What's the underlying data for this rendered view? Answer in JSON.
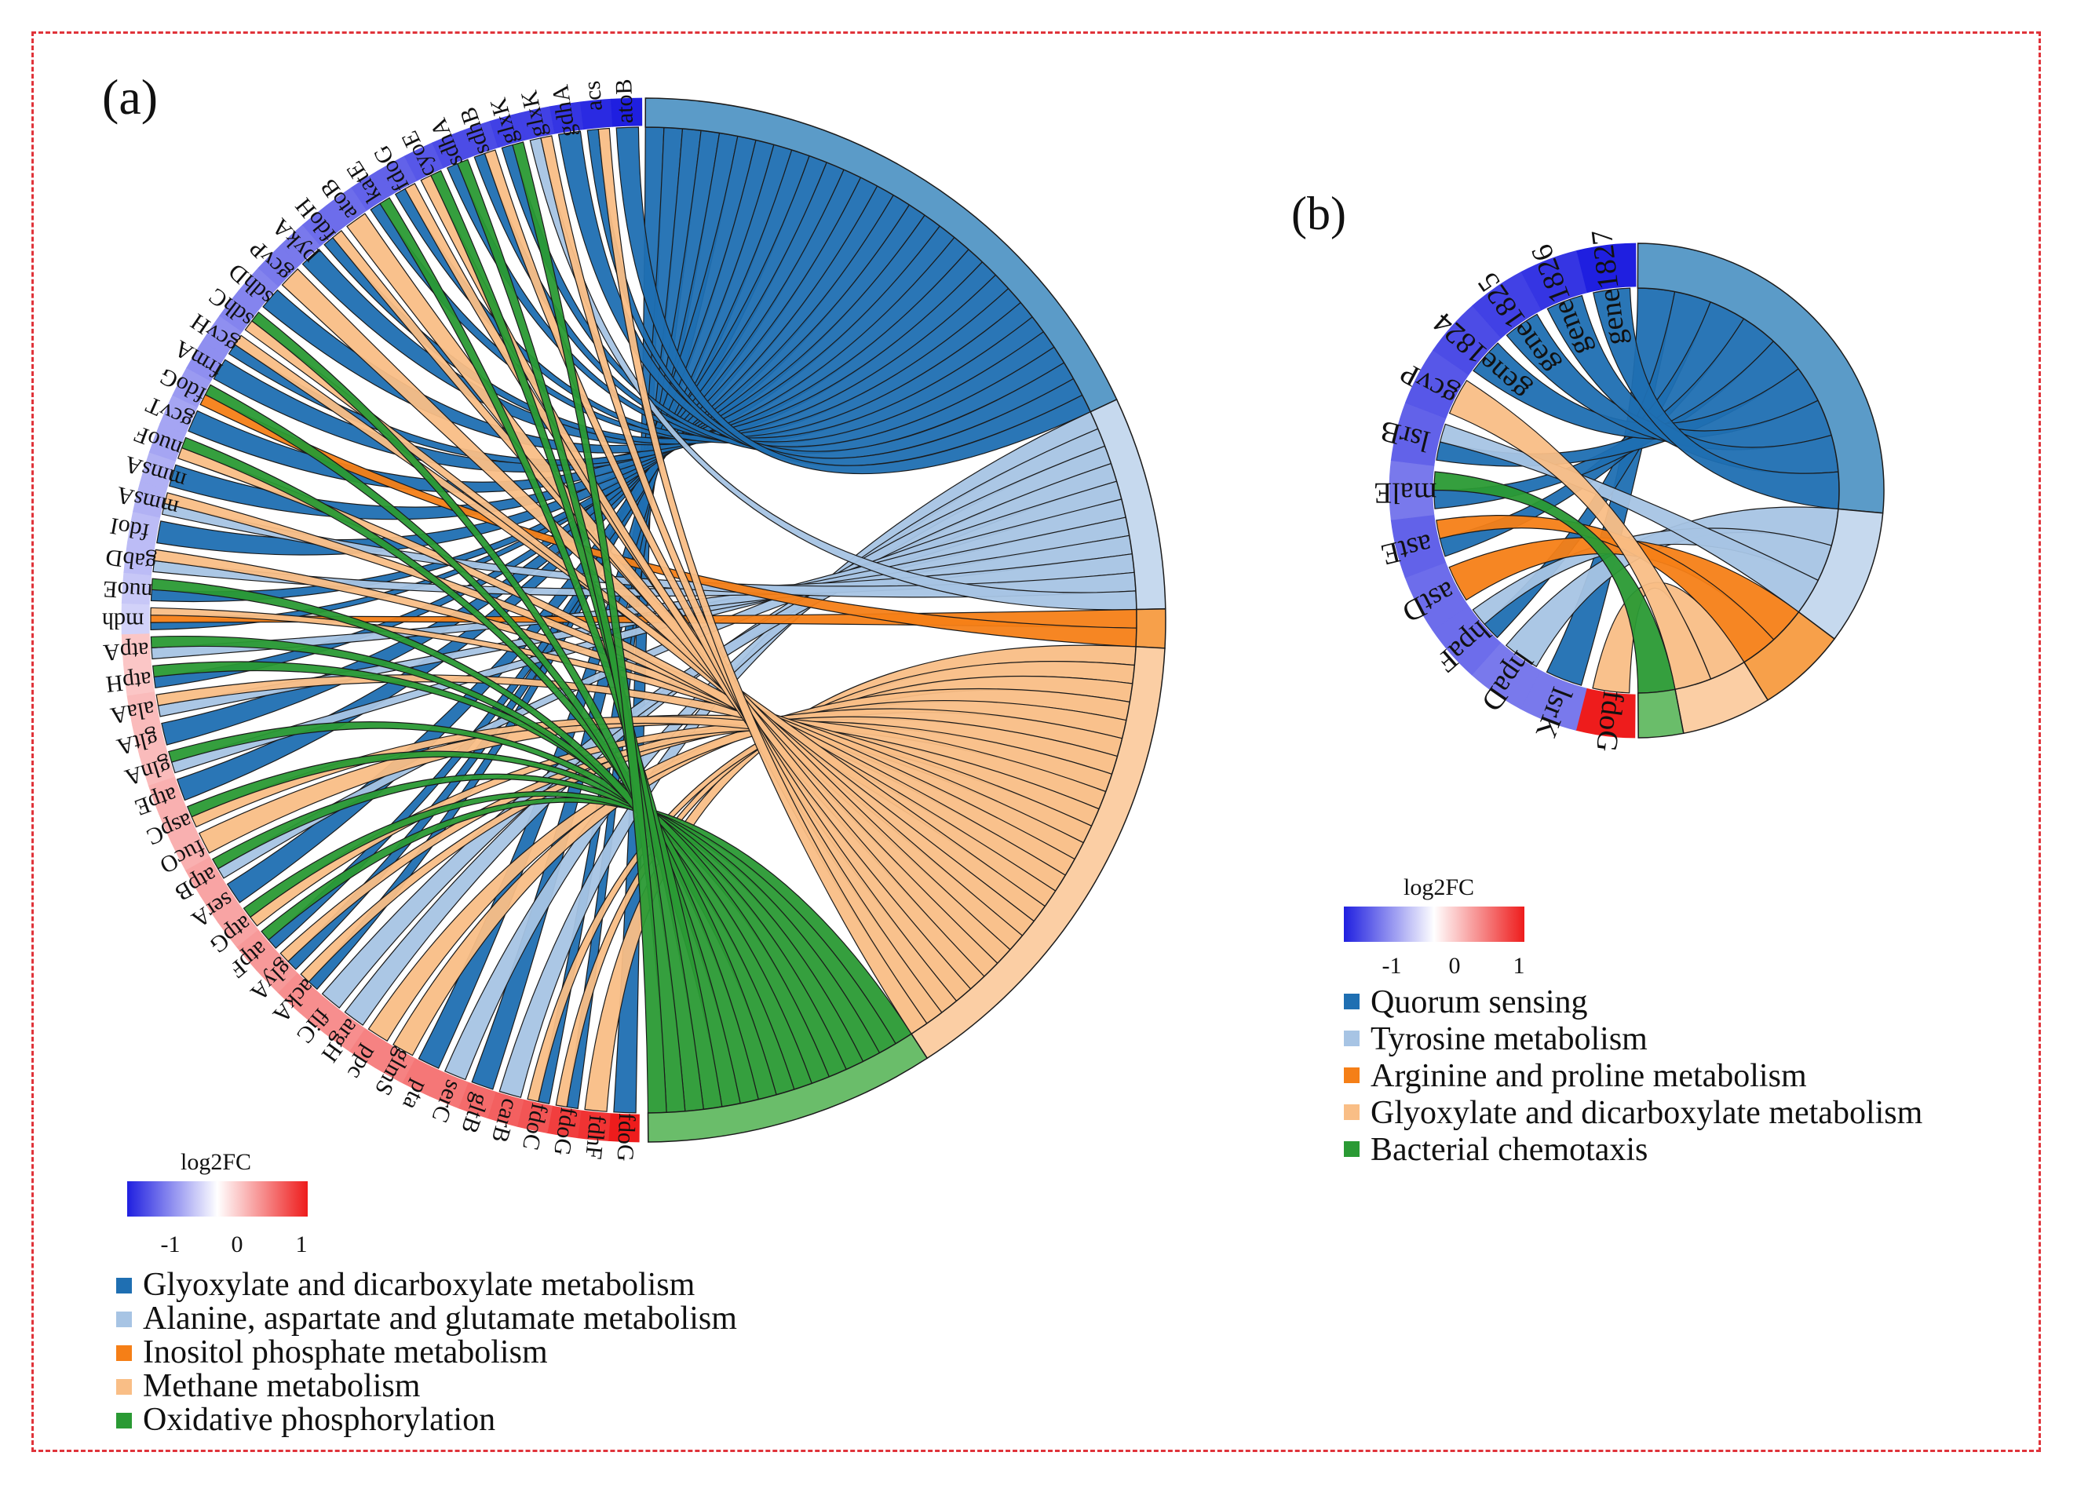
{
  "panels": [
    {
      "label": "(a)",
      "genes": [
        {
          "name": "fdoG",
          "fc": 1.0
        },
        {
          "name": "fdhF",
          "fc": 0.9
        },
        {
          "name": "fdoG",
          "fc": 0.85
        },
        {
          "name": "fdoC",
          "fc": 0.75
        },
        {
          "name": "carB",
          "fc": 0.7
        },
        {
          "name": "gltB",
          "fc": 0.65
        },
        {
          "name": "serC",
          "fc": 0.6
        },
        {
          "name": "pta",
          "fc": 0.6
        },
        {
          "name": "glmS",
          "fc": 0.55
        },
        {
          "name": "ppc",
          "fc": 0.55
        },
        {
          "name": "argH",
          "fc": 0.5
        },
        {
          "name": "fliC",
          "fc": 0.5
        },
        {
          "name": "ackA",
          "fc": 0.5
        },
        {
          "name": "glyA",
          "fc": 0.45
        },
        {
          "name": "atpF",
          "fc": 0.45
        },
        {
          "name": "atpG",
          "fc": 0.4
        },
        {
          "name": "serA",
          "fc": 0.4
        },
        {
          "name": "atpB",
          "fc": 0.4
        },
        {
          "name": "fucO",
          "fc": 0.35
        },
        {
          "name": "aspC",
          "fc": 0.35
        },
        {
          "name": "atpE",
          "fc": 0.35
        },
        {
          "name": "glnA",
          "fc": 0.3
        },
        {
          "name": "gltA",
          "fc": 0.3
        },
        {
          "name": "alaA",
          "fc": 0.3
        },
        {
          "name": "atpH",
          "fc": 0.25
        },
        {
          "name": "atpA",
          "fc": 0.25
        },
        {
          "name": "mdh",
          "fc": -0.2
        },
        {
          "name": "nuoE",
          "fc": -0.25
        },
        {
          "name": "gabD",
          "fc": -0.3
        },
        {
          "name": "fdoI",
          "fc": -0.3
        },
        {
          "name": "mmsA",
          "fc": -0.35
        },
        {
          "name": "mmsA",
          "fc": -0.35
        },
        {
          "name": "nuoF",
          "fc": -0.4
        },
        {
          "name": "gcvT",
          "fc": -0.4
        },
        {
          "name": "fdoG",
          "fc": -0.45
        },
        {
          "name": "frmA",
          "fc": -0.5
        },
        {
          "name": "gcvH",
          "fc": -0.5
        },
        {
          "name": "sdhC",
          "fc": -0.55
        },
        {
          "name": "sdhD",
          "fc": -0.55
        },
        {
          "name": "gcvP",
          "fc": -0.6
        },
        {
          "name": "pykA",
          "fc": -0.6
        },
        {
          "name": "fdoH",
          "fc": -0.65
        },
        {
          "name": "atoB",
          "fc": -0.65
        },
        {
          "name": "katE",
          "fc": -0.7
        },
        {
          "name": "fdoG",
          "fc": -0.7
        },
        {
          "name": "cyoE",
          "fc": -0.75
        },
        {
          "name": "sdhA",
          "fc": -0.8
        },
        {
          "name": "sdhB",
          "fc": -0.8
        },
        {
          "name": "glxK",
          "fc": -0.85
        },
        {
          "name": "glxK",
          "fc": -0.85
        },
        {
          "name": "gdhA",
          "fc": -0.9
        },
        {
          "name": "acs",
          "fc": -0.95
        },
        {
          "name": "atoB",
          "fc": -1.0
        }
      ],
      "pathways": [
        {
          "name": "Glyoxylate and dicarboxylate metabolism",
          "color": "#1f6fb2",
          "arc_color": "#5b9bc8",
          "members": [
            0,
            2,
            3,
            5,
            7,
            12,
            13,
            14,
            16,
            20,
            22,
            24,
            26,
            27,
            29,
            31,
            33,
            35,
            36,
            38,
            40,
            41,
            43,
            44,
            46,
            47,
            48,
            50,
            51,
            52
          ]
        },
        {
          "name": "Alanine, aspartate and glutamate metabolism",
          "color": "#a7c4e4",
          "arc_color": "#c6d9ee",
          "members": [
            4,
            6,
            10,
            11,
            17,
            21,
            23,
            25,
            28,
            30,
            49
          ]
        },
        {
          "name": "Inositol phosphate metabolism",
          "color": "#f57f17",
          "arc_color": "#f7a04a",
          "members": [
            26,
            34
          ]
        },
        {
          "name": "Methane metabolism",
          "color": "#f9be86",
          "arc_color": "#fbcea4",
          "members": [
            1,
            2,
            3,
            8,
            9,
            12,
            13,
            15,
            18,
            19,
            23,
            26,
            28,
            30,
            32,
            36,
            37,
            39,
            41,
            42,
            44,
            45,
            47,
            49,
            51
          ]
        },
        {
          "name": "Oxidative phosphorylation",
          "color": "#2a9a34",
          "arc_color": "#6abd6a",
          "members": [
            14,
            15,
            17,
            19,
            21,
            24,
            25,
            27,
            32,
            34,
            37,
            43,
            45,
            46,
            48
          ]
        }
      ],
      "colorbar": {
        "title": "log2FC",
        "ticks": [
          "-1",
          "0",
          "1"
        ]
      }
    },
    {
      "label": "(b)",
      "genes": [
        {
          "name": "fdoG",
          "fc": 1.0
        },
        {
          "name": "lsrK",
          "fc": -0.6
        },
        {
          "name": "hpaD",
          "fc": -0.6
        },
        {
          "name": "hpaF",
          "fc": -0.65
        },
        {
          "name": "astD",
          "fc": -0.65
        },
        {
          "name": "astE",
          "fc": -0.7
        },
        {
          "name": "malE",
          "fc": -0.6
        },
        {
          "name": "lsrB",
          "fc": -0.7
        },
        {
          "name": "gcvP",
          "fc": -0.75
        },
        {
          "name": "gene1824",
          "fc": -0.8
        },
        {
          "name": "gene1825",
          "fc": -0.85
        },
        {
          "name": "gene1826",
          "fc": -0.9
        },
        {
          "name": "gene1827",
          "fc": -1.0
        }
      ],
      "pathways": [
        {
          "name": "Quorum sensing",
          "color": "#1f6fb2",
          "arc_color": "#5b9bc8",
          "members": [
            1,
            3,
            5,
            6,
            7,
            9,
            10,
            11,
            12
          ]
        },
        {
          "name": "Tyrosine metabolism",
          "color": "#a7c4e4",
          "arc_color": "#c6d9ee",
          "members": [
            2,
            3,
            7
          ]
        },
        {
          "name": "Arginine and proline metabolism",
          "color": "#f57f17",
          "arc_color": "#f7a04a",
          "members": [
            4,
            5
          ]
        },
        {
          "name": "Glyoxylate and dicarboxylate metabolism",
          "color": "#f9be86",
          "arc_color": "#fbcea4",
          "members": [
            0,
            8
          ]
        },
        {
          "name": "Bacterial chemotaxis",
          "color": "#2a9a34",
          "arc_color": "#6abd6a",
          "members": [
            6
          ]
        }
      ],
      "colorbar": {
        "title": "log2FC",
        "ticks": [
          "-1",
          "0",
          "1"
        ]
      }
    }
  ],
  "colors": {
    "border": "#e0333a",
    "negative": "#1f1fe0",
    "positive": "#ee1c1c",
    "neutral": "#ffffff"
  }
}
